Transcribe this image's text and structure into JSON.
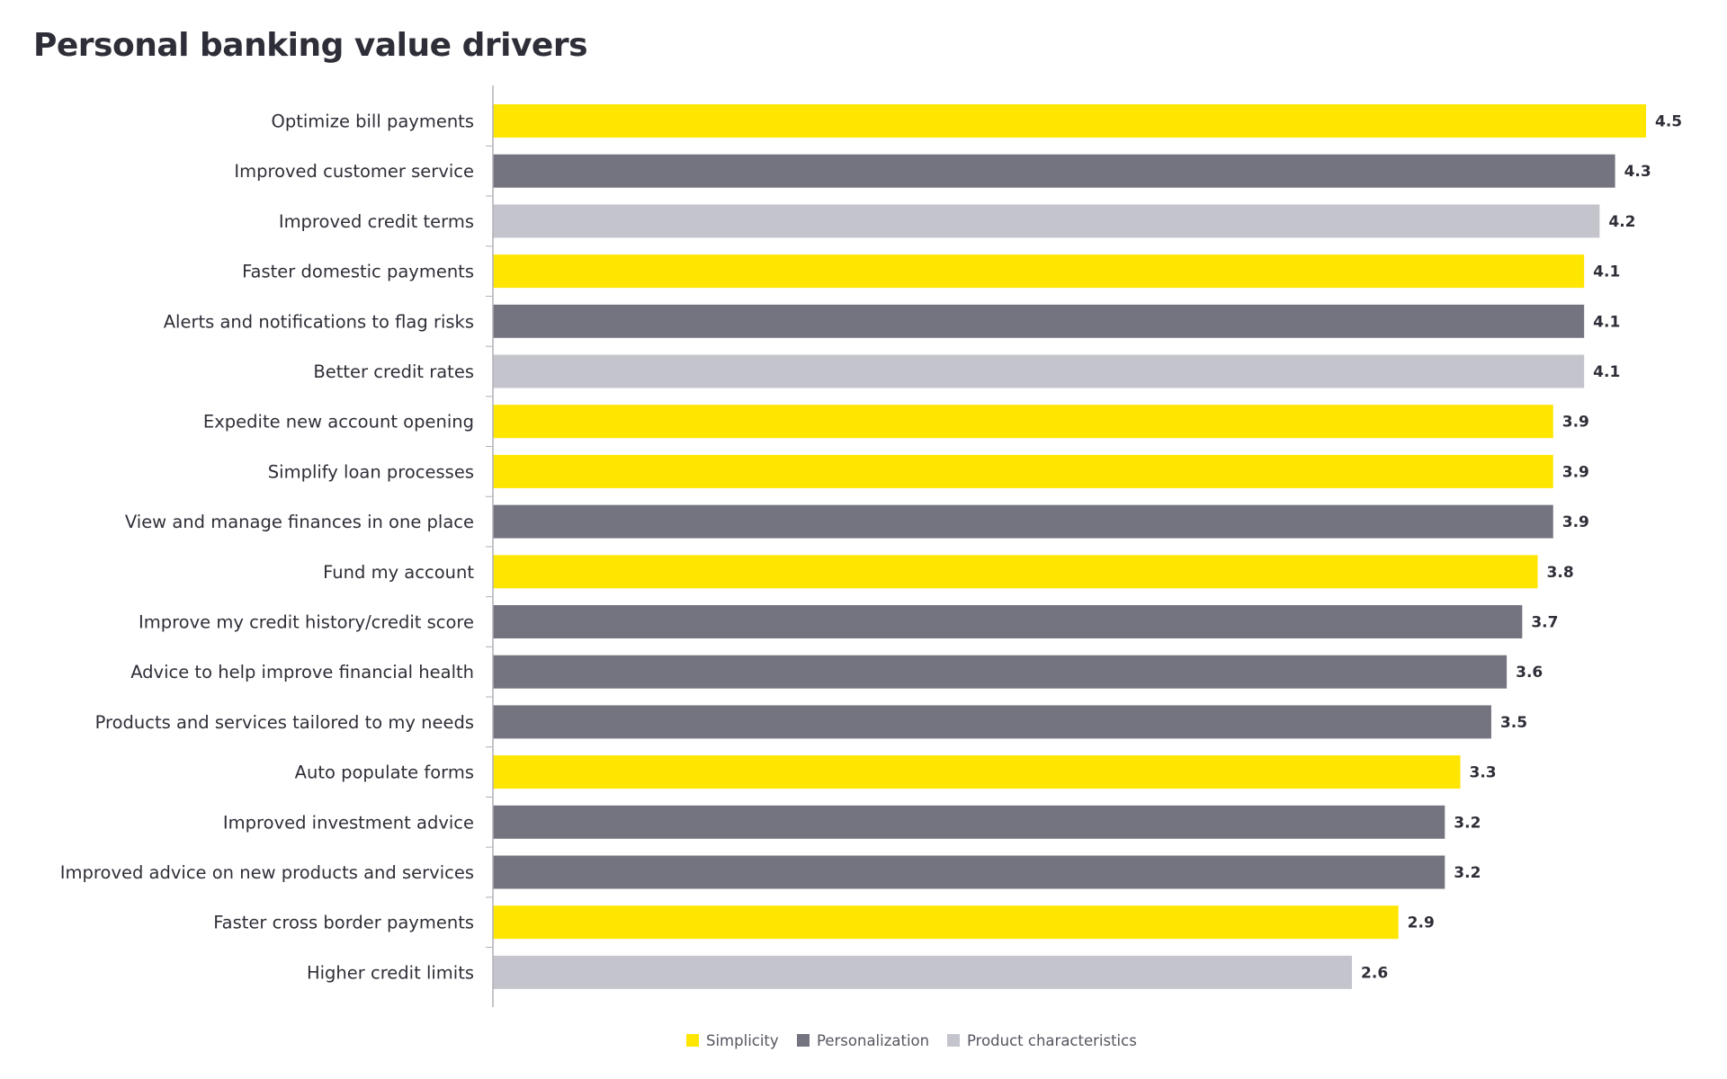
{
  "chart_data": {
    "type": "bar",
    "orientation": "horizontal",
    "title": "Personal banking value drivers",
    "xlabel": "",
    "ylabel": "",
    "grid": false,
    "legend_position": "bottom-center",
    "xlim": [
      -2.95,
      4.5
    ],
    "categories": [
      "Optimize bill payments",
      "Improved customer service",
      "Improved credit terms",
      "Faster domestic payments",
      "Alerts and notifications to flag risks",
      "Better credit rates",
      "Expedite new account opening",
      "Simplify loan processes",
      "View and manage finances in one place",
      "Fund my account",
      "Improve my credit history/credit score",
      "Advice to help improve financial health",
      "Products and services tailored to my needs",
      "Auto populate forms",
      "Improved investment advice",
      "Improved advice on new products and services",
      "Faster cross border payments",
      "Higher credit limits"
    ],
    "values": [
      4.5,
      4.3,
      4.2,
      4.1,
      4.1,
      4.1,
      3.9,
      3.9,
      3.9,
      3.8,
      3.7,
      3.6,
      3.5,
      3.3,
      3.2,
      3.2,
      2.9,
      2.6
    ],
    "value_labels": [
      "4.5",
      "4.3",
      "4.2",
      "4.1",
      "4.1",
      "4.1",
      "3.9",
      "3.9",
      "3.9",
      "3.8",
      "3.7",
      "3.6",
      "3.5",
      "3.3",
      "3.2",
      "3.2",
      "2.9",
      "2.6"
    ],
    "groups": [
      "Simplicity",
      "Personalization",
      "Product characteristics",
      "Simplicity",
      "Personalization",
      "Product characteristics",
      "Simplicity",
      "Simplicity",
      "Personalization",
      "Simplicity",
      "Personalization",
      "Personalization",
      "Personalization",
      "Simplicity",
      "Personalization",
      "Personalization",
      "Simplicity",
      "Product characteristics"
    ],
    "legend": [
      {
        "name": "Simplicity",
        "color": "#ffe600"
      },
      {
        "name": "Personalization",
        "color": "#747480"
      },
      {
        "name": "Product characteristics",
        "color": "#c4c4cd"
      }
    ]
  },
  "colors": {
    "text": "#2e2e38",
    "axis": "#b0b0b8"
  }
}
